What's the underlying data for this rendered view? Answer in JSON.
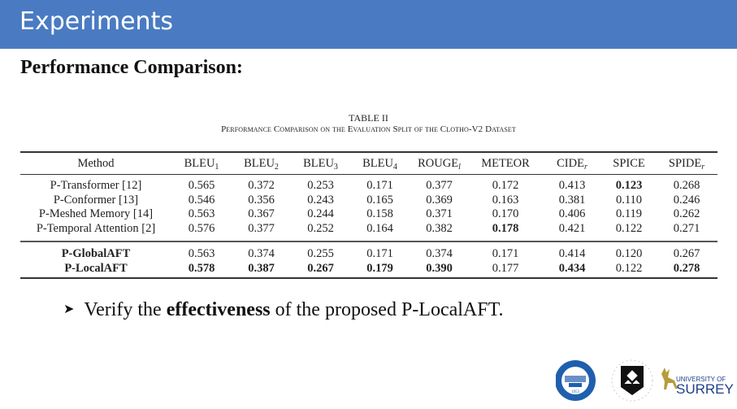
{
  "header": {
    "title": "Experiments",
    "color": "#4a7bc2"
  },
  "subtitle": "Performance Comparison:",
  "table": {
    "label": "TABLE II",
    "caption": "Performance Comparison on the Evaluation Split of the Clotho-V2 Dataset",
    "columns": [
      {
        "base": "Method",
        "sub": ""
      },
      {
        "base": "BLEU",
        "sub": "1"
      },
      {
        "base": "BLEU",
        "sub": "2"
      },
      {
        "base": "BLEU",
        "sub": "3"
      },
      {
        "base": "BLEU",
        "sub": "4"
      },
      {
        "base": "ROUGE",
        "sub": "l"
      },
      {
        "base": "METEOR",
        "sub": ""
      },
      {
        "base": "CIDE",
        "sub": "r"
      },
      {
        "base": "SPICE",
        "sub": ""
      },
      {
        "base": "SPIDE",
        "sub": "r"
      }
    ],
    "baseline_rows": [
      {
        "method": "P-Transformer [12]",
        "values": [
          "0.565",
          "0.372",
          "0.253",
          "0.171",
          "0.377",
          "0.172",
          "0.413",
          "0.123",
          "0.268"
        ],
        "bold": [
          false,
          false,
          false,
          false,
          false,
          false,
          false,
          true,
          false
        ]
      },
      {
        "method": "P-Conformer [13]",
        "values": [
          "0.546",
          "0.356",
          "0.243",
          "0.165",
          "0.369",
          "0.163",
          "0.381",
          "0.110",
          "0.246"
        ],
        "bold": [
          false,
          false,
          false,
          false,
          false,
          false,
          false,
          false,
          false
        ]
      },
      {
        "method": "P-Meshed Memory [14]",
        "values": [
          "0.563",
          "0.367",
          "0.244",
          "0.158",
          "0.371",
          "0.170",
          "0.406",
          "0.119",
          "0.262"
        ],
        "bold": [
          false,
          false,
          false,
          false,
          false,
          false,
          false,
          false,
          false
        ]
      },
      {
        "method": "P-Temporal Attention [2]",
        "values": [
          "0.576",
          "0.377",
          "0.252",
          "0.164",
          "0.382",
          "0.178",
          "0.421",
          "0.122",
          "0.271"
        ],
        "bold": [
          false,
          false,
          false,
          false,
          false,
          true,
          false,
          false,
          false
        ]
      }
    ],
    "proposed_rows": [
      {
        "method": "P-GlobalAFT",
        "values": [
          "0.563",
          "0.374",
          "0.255",
          "0.171",
          "0.374",
          "0.171",
          "0.414",
          "0.120",
          "0.267"
        ],
        "bold": [
          false,
          false,
          false,
          false,
          false,
          false,
          false,
          false,
          false
        ]
      },
      {
        "method": "P-LocalAFT",
        "values": [
          "0.578",
          "0.387",
          "0.267",
          "0.179",
          "0.390",
          "0.177",
          "0.434",
          "0.122",
          "0.278"
        ],
        "bold": [
          true,
          true,
          true,
          true,
          true,
          false,
          true,
          false,
          true
        ]
      }
    ]
  },
  "bullet": {
    "prefix": "Verify the ",
    "emphasis": "effectiveness",
    "suffix": " of the proposed P-LocalAFT."
  },
  "logos": {
    "surrey": "UNIVERSITY OF SURREY",
    "uts": "UNIVERSITY OF TECHNOLOGY SYDNEY",
    "heu_year": "1953"
  }
}
